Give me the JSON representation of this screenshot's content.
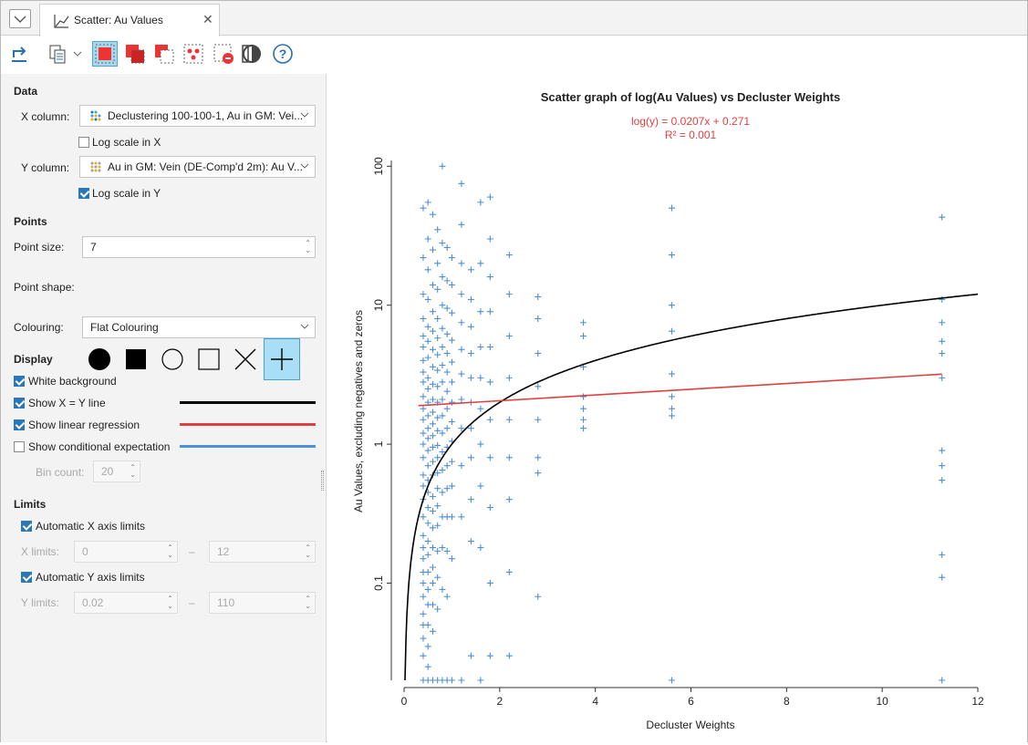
{
  "tab": {
    "title": "Scatter: Au Values",
    "icon": "scatter-chart-icon"
  },
  "toolbar": {
    "icons": [
      "export-icon",
      "copy-icon",
      "select-box-icon",
      "select-add-icon",
      "select-remove-icon",
      "select-points-icon",
      "deselect-icon",
      "invert-icon",
      "help-icon"
    ]
  },
  "data": {
    "heading": "Data",
    "x_label": "X column:",
    "x_value": "Declustering 100-100-1, Au in GM: Vei...",
    "log_x": "Log scale in X",
    "log_x_checked": false,
    "y_label": "Y column:",
    "y_value": "Au in GM: Vein (DE-Comp'd 2m): Au V...",
    "log_y": "Log scale in Y",
    "log_y_checked": true
  },
  "points": {
    "heading": "Points",
    "size_label": "Point size:",
    "size_value": "7",
    "shape_label": "Point shape:",
    "shapes": [
      "filled-circle-icon",
      "filled-square-icon",
      "circle-icon",
      "square-icon",
      "x-cross-icon",
      "plus-icon"
    ],
    "selected_shape": "plus-icon",
    "colouring_label": "Colouring:",
    "colouring_value": "Flat Colouring"
  },
  "display": {
    "heading": "Display",
    "white_bg": "White background",
    "white_bg_checked": true,
    "show_xy": "Show X = Y line",
    "show_xy_checked": true,
    "xy_color": "#000000",
    "show_reg": "Show linear regression",
    "show_reg_checked": true,
    "reg_color": "#e04040",
    "show_cond": "Show conditional expectation",
    "show_cond_checked": false,
    "cond_color": "#4f8fd4",
    "bin_label": "Bin count:",
    "bin_value": "20"
  },
  "limits": {
    "heading": "Limits",
    "auto_x": "Automatic X axis limits",
    "auto_x_checked": true,
    "x_label": "X limits:",
    "x_min": "0",
    "x_max": "12",
    "dash": "–",
    "auto_y": "Automatic Y axis limits",
    "auto_y_checked": true,
    "y_label": "Y limits:",
    "y_min": "0.02",
    "y_max": "110"
  },
  "chart_data": {
    "type": "scatter",
    "title": "Scatter graph of log(Au Values) vs Decluster Weights",
    "equation": "log(y) = 0.0207x + 0.271",
    "r2": "R² = 0.001",
    "xlabel": "Decluster Weights",
    "ylabel": "Au Values, excluding negatives and zeros",
    "xlim": [
      0,
      12
    ],
    "ylim": [
      0.02,
      110
    ],
    "yscale": "log",
    "x_ticks": [
      "0",
      "2",
      "4",
      "6",
      "8",
      "10",
      "12"
    ],
    "y_ticks": [
      "0.1",
      "1",
      "10",
      "100"
    ],
    "point_color": "#4f8fd4",
    "marker": "plus",
    "regression": {
      "slope": 0.0207,
      "intercept": 0.271,
      "color": "#e04040"
    },
    "xy_line": {
      "color": "#000000"
    },
    "series": [
      {
        "x": [
          0.4,
          0.4,
          0.4,
          0.4,
          0.4,
          0.4,
          0.4,
          0.4,
          0.4,
          0.4,
          0.4,
          0.4,
          0.4,
          0.4,
          0.4,
          0.4,
          0.4,
          0.4,
          0.4,
          0.4,
          0.4,
          0.4,
          0.4,
          0.4,
          0.4,
          0.4,
          0.4,
          0.4,
          0.4,
          0.4,
          0.5,
          0.5,
          0.5,
          0.5,
          0.5,
          0.5,
          0.5,
          0.5,
          0.5,
          0.5,
          0.5,
          0.5,
          0.5,
          0.5,
          0.5,
          0.5,
          0.5,
          0.5,
          0.5,
          0.5,
          0.5,
          0.5,
          0.5,
          0.5,
          0.5,
          0.5,
          0.5,
          0.5,
          0.6,
          0.6,
          0.6,
          0.6,
          0.6,
          0.6,
          0.6,
          0.6,
          0.6,
          0.6,
          0.6,
          0.6,
          0.6,
          0.6,
          0.6,
          0.6,
          0.6,
          0.6,
          0.6,
          0.6,
          0.6,
          0.6,
          0.6,
          0.6,
          0.7,
          0.7,
          0.7,
          0.7,
          0.7,
          0.7,
          0.7,
          0.7,
          0.7,
          0.7,
          0.7,
          0.7,
          0.7,
          0.7,
          0.7,
          0.7,
          0.7,
          0.7,
          0.7,
          0.7,
          0.7,
          0.8,
          0.8,
          0.8,
          0.8,
          0.8,
          0.8,
          0.8,
          0.8,
          0.8,
          0.8,
          0.8,
          0.8,
          0.8,
          0.8,
          0.8,
          0.8,
          0.8,
          0.8,
          0.9,
          0.9,
          0.9,
          0.9,
          0.9,
          0.9,
          0.9,
          0.9,
          0.9,
          0.9,
          0.9,
          0.9,
          0.9,
          0.9,
          0.9,
          0.9,
          1.0,
          1.0,
          1.0,
          1.0,
          1.0,
          1.0,
          1.0,
          1.0,
          1.0,
          1.0,
          1.0,
          1.0,
          1.0,
          1.0,
          1.2,
          1.2,
          1.2,
          1.2,
          1.2,
          1.2,
          1.2,
          1.2,
          1.2,
          1.2,
          1.2,
          1.2,
          1.4,
          1.4,
          1.4,
          1.4,
          1.4,
          1.4,
          1.4,
          1.4,
          1.4,
          1.4,
          1.4,
          1.6,
          1.6,
          1.6,
          1.6,
          1.6,
          1.6,
          1.6,
          1.6,
          1.6,
          1.6,
          1.8,
          1.8,
          1.8,
          1.8,
          1.8,
          1.8,
          1.8,
          1.8,
          1.8,
          1.8,
          1.8,
          2.2,
          2.2,
          2.2,
          2.2,
          2.2,
          2.2,
          2.2,
          2.2,
          2.2,
          2.8,
          2.8,
          2.8,
          2.8,
          2.8,
          2.8,
          2.8,
          2.8,
          3.75,
          3.75,
          3.75,
          3.75,
          3.75,
          3.75,
          3.75,
          5.6,
          5.6,
          5.6,
          5.6,
          5.6,
          5.6,
          5.6,
          5.6,
          5.6,
          11.25,
          11.25,
          11.25,
          11.25,
          11.25,
          11.25,
          11.25,
          11.25,
          11.25,
          11.25,
          11.25,
          11.25
        ],
        "y": [
          50,
          22,
          12,
          8,
          6,
          5,
          4,
          3.3,
          2.8,
          2.2,
          1.8,
          1.5,
          1.2,
          1,
          0.8,
          0.6,
          0.5,
          0.4,
          0.3,
          0.22,
          0.18,
          0.15,
          0.12,
          0.1,
          0.08,
          0.06,
          0.05,
          0.04,
          0.03,
          0.02,
          55,
          30,
          18,
          11,
          7,
          5.5,
          4.2,
          3,
          2.5,
          2,
          1.6,
          1.3,
          1.1,
          0.9,
          0.7,
          0.55,
          0.45,
          0.35,
          0.27,
          0.2,
          0.16,
          0.12,
          0.09,
          0.07,
          0.05,
          0.035,
          0.025,
          0.02,
          45,
          25,
          14,
          9,
          6.5,
          4.8,
          3.6,
          2.7,
          2.1,
          1.7,
          1.4,
          1.15,
          0.95,
          0.75,
          0.6,
          0.42,
          0.33,
          0.25,
          0.18,
          0.13,
          0.1,
          0.07,
          0.045,
          0.02,
          35,
          20,
          13,
          8,
          5.8,
          4.4,
          3.4,
          2.6,
          2,
          1.55,
          1.25,
          0.98,
          0.8,
          0.62,
          0.48,
          0.36,
          0.26,
          0.17,
          0.11,
          0.065,
          0.02,
          100,
          28,
          16,
          10,
          6.8,
          5,
          3.7,
          2.8,
          2.1,
          1.6,
          1.2,
          0.88,
          0.65,
          0.45,
          0.3,
          0.18,
          0.09,
          0.02,
          26,
          15,
          9.5,
          6.2,
          4.5,
          3.3,
          2.4,
          1.8,
          1.3,
          0.95,
          0.7,
          0.48,
          0.3,
          0.17,
          0.08,
          0.02,
          22,
          14,
          8.8,
          5.6,
          3.9,
          2.8,
          2,
          1.45,
          1.05,
          0.75,
          0.5,
          0.3,
          0.15,
          0.02,
          75,
          38,
          20,
          12,
          7.5,
          4.8,
          3.2,
          2.1,
          1.3,
          0.7,
          0.3,
          0.02,
          18,
          11,
          7,
          4.5,
          3,
          2,
          1.3,
          0.8,
          0.4,
          0.2,
          0.03,
          55,
          20,
          9,
          5,
          3,
          1.8,
          1,
          0.5,
          0.18,
          0.02,
          60,
          30,
          16,
          9,
          5,
          2.8,
          1.5,
          0.8,
          0.35,
          0.1,
          0.03,
          23,
          12,
          6,
          3,
          1.5,
          0.8,
          0.4,
          0.12,
          0.03,
          11.5,
          8,
          4.5,
          2.6,
          1.5,
          0.8,
          0.62,
          0.08,
          7.5,
          6,
          3.6,
          2.2,
          1.8,
          1.5,
          1.3,
          50,
          23,
          10,
          6.5,
          3.2,
          2.2,
          1.8,
          1.6,
          0.02,
          43,
          11,
          7.5,
          5.5,
          4.5,
          3,
          0.9,
          0.7,
          0.55,
          0.16,
          0.11,
          0.02
        ]
      }
    ]
  }
}
